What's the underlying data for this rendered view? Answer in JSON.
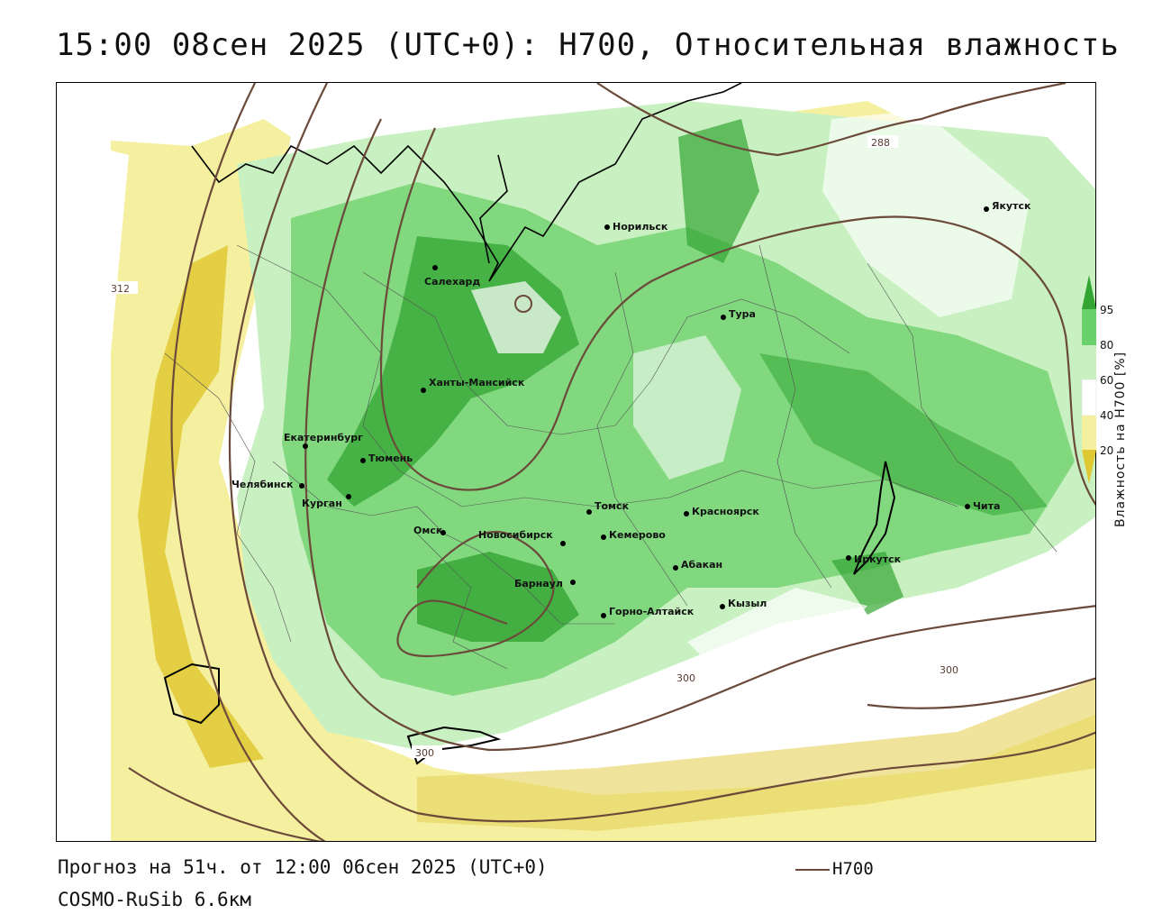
{
  "title": "15:00 08сен 2025 (UTC+0): H700, Относительная влажность",
  "forecast_text": "Прогноз на 51ч. от 12:00 06сен 2025 (UTC+0)",
  "model_text": "COSMO-RuSib 6.6км",
  "legend": {
    "line_label": "H700",
    "line_color": "#6b4a3a"
  },
  "colorbar": {
    "title": "Влажность на H700 [%]",
    "ticks": [
      "95",
      "80",
      "60",
      "40",
      "20"
    ],
    "colors": [
      "#33a533",
      "#6ad06a",
      "#c8f0c0",
      "#ffffff",
      "#f5f0a0",
      "#e0c832"
    ]
  },
  "cities": [
    {
      "name": "Норильск"
    },
    {
      "name": "Салехард"
    },
    {
      "name": "Якутск"
    },
    {
      "name": "Тура"
    },
    {
      "name": "Ханты-Мансийск"
    },
    {
      "name": "Екатеринбург"
    },
    {
      "name": "Тюмень"
    },
    {
      "name": "Челябинск"
    },
    {
      "name": "Курган"
    },
    {
      "name": "Омск"
    },
    {
      "name": "Новосибирск"
    },
    {
      "name": "Томск"
    },
    {
      "name": "Кемерово"
    },
    {
      "name": "Красноярск"
    },
    {
      "name": "Абакан"
    },
    {
      "name": "Барнаул"
    },
    {
      "name": "Горно-Алтайск"
    },
    {
      "name": "Кызыл"
    },
    {
      "name": "Иркутск"
    },
    {
      "name": "Чита"
    }
  ],
  "isoline_labels": [
    "312",
    "288",
    "300",
    "300",
    "300"
  ]
}
